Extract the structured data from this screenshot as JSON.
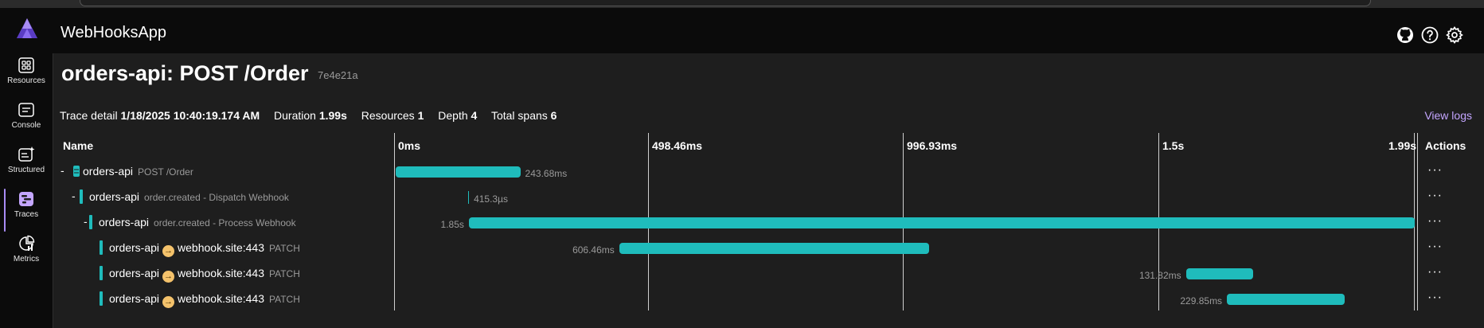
{
  "app": {
    "title": "WebHooksApp"
  },
  "nav": [
    {
      "label": "Resources",
      "icon": "resources-icon"
    },
    {
      "label": "Console",
      "icon": "console-icon"
    },
    {
      "label": "Structured",
      "icon": "structured-icon"
    },
    {
      "label": "Traces",
      "icon": "traces-icon",
      "active": true
    },
    {
      "label": "Metrics",
      "icon": "metrics-icon"
    }
  ],
  "header_icons": [
    "github-icon",
    "help-icon",
    "settings-icon"
  ],
  "page": {
    "title": "orders-api: POST /Order",
    "trace_id": "7e4e21a"
  },
  "summary": {
    "trace_detail_label": "Trace detail",
    "trace_detail_value": "1/18/2025 10:40:19.174 AM",
    "duration_label": "Duration",
    "duration_value": "1.99s",
    "resources_label": "Resources",
    "resources_value": "1",
    "depth_label": "Depth",
    "depth_value": "4",
    "spans_label": "Total spans",
    "spans_value": "6",
    "view_logs": "View logs"
  },
  "columns": {
    "name": "Name",
    "ticks": [
      "0ms",
      "498.46ms",
      "996.93ms",
      "1.5s",
      "1.99s"
    ],
    "actions": "Actions"
  },
  "timeline_total_ms": 1993.8,
  "spans": [
    {
      "service": "orders-api",
      "operation": "POST /Order",
      "endpoint": "",
      "method": "",
      "duration_label": "243.68ms",
      "start_ms": 0,
      "duration_ms": 243.68,
      "depth": 0,
      "collapse": "-",
      "label_side": "right",
      "actions": "···"
    },
    {
      "service": "orders-api",
      "operation": "order.created - Dispatch Webhook",
      "endpoint": "",
      "method": "",
      "duration_label": "415.3µs",
      "start_ms": 141,
      "duration_ms": 0.4153,
      "depth": 1,
      "collapse": "-",
      "label_side": "right",
      "actions": "···"
    },
    {
      "service": "orders-api",
      "operation": "order.created - Process Webhook",
      "endpoint": "",
      "method": "",
      "duration_label": "1.85s",
      "start_ms": 143,
      "duration_ms": 1850,
      "depth": 2,
      "collapse": "-",
      "label_side": "left",
      "actions": "···"
    },
    {
      "service": "orders-api",
      "operation": "",
      "endpoint": "webhook.site:443",
      "method": "PATCH",
      "duration_label": "606.46ms",
      "start_ms": 437,
      "duration_ms": 606.46,
      "depth": 3,
      "collapse": "",
      "label_side": "left",
      "actions": "···"
    },
    {
      "service": "orders-api",
      "operation": "",
      "endpoint": "webhook.site:443",
      "method": "PATCH",
      "duration_label": "131.82ms",
      "start_ms": 1545,
      "duration_ms": 131.82,
      "depth": 3,
      "collapse": "",
      "label_side": "left",
      "actions": "···"
    },
    {
      "service": "orders-api",
      "operation": "",
      "endpoint": "webhook.site:443",
      "method": "PATCH",
      "duration_label": "229.85ms",
      "start_ms": 1625,
      "duration_ms": 229.85,
      "depth": 3,
      "collapse": "",
      "label_side": "left",
      "actions": "···"
    }
  ],
  "colors": {
    "accent": "#a88cf5",
    "span": "#1fbcbc",
    "link": "#c4a6ff",
    "endpoint_icon": "#f4c26b"
  }
}
